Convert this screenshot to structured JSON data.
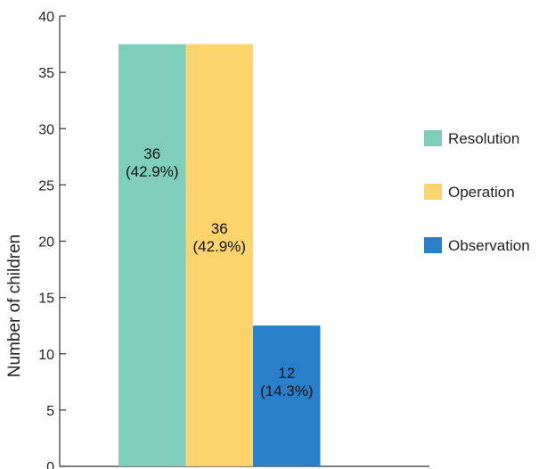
{
  "chart_data": {
    "type": "bar",
    "title": "",
    "xlabel": "",
    "ylabel": "Number of children",
    "ylim": [
      0,
      40
    ],
    "yticks": [
      0,
      5,
      10,
      15,
      20,
      25,
      30,
      35,
      40
    ],
    "grid": false,
    "legend_position": "right",
    "series": [
      {
        "name": "Resolution",
        "value": 36,
        "display": "36",
        "percent_label": "(42.9%)",
        "color": "#7fcdbb"
      },
      {
        "name": "Operation",
        "value": 36,
        "display": "36",
        "percent_label": "(42.9%)",
        "color": "#fdd36b"
      },
      {
        "name": "Observation",
        "value": 12,
        "display": "12",
        "percent_label": "(14.3%)",
        "color": "#2a7fc9"
      }
    ]
  }
}
